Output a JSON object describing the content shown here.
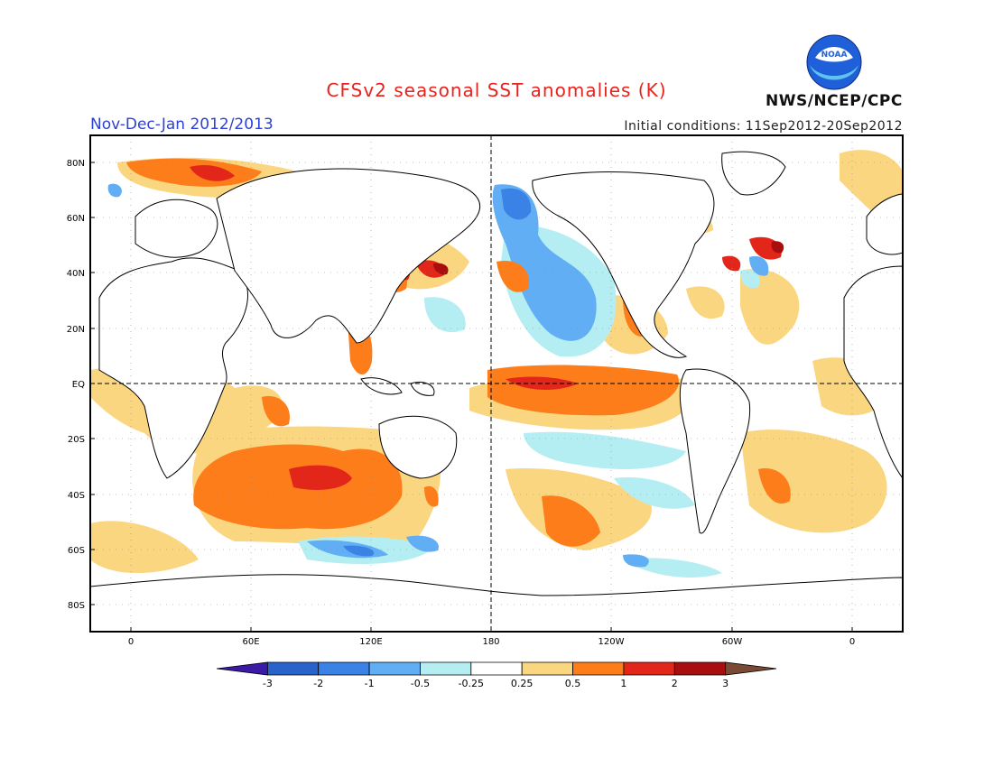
{
  "title": "CFSv2 seasonal SST anomalies (K)",
  "subtitle": "Nov-Dec-Jan 2012/2013",
  "initial_conditions": "Initial conditions: 11Sep2012-20Sep2012",
  "agency": "NWS/NCEP/CPC",
  "logo_text": "NOAA",
  "colors": {
    "title": "#e8231d",
    "subtitle": "#2f40d6"
  },
  "lat_labels": [
    "80N",
    "60N",
    "40N",
    "20N",
    "EQ",
    "20S",
    "40S",
    "60S",
    "80S"
  ],
  "lon_labels": [
    "0",
    "60E",
    "120E",
    "180",
    "120W",
    "60W",
    "0"
  ],
  "colorbar": {
    "ticks": [
      "-3",
      "-2",
      "-1",
      "-0.5",
      "-0.25",
      "0.25",
      "0.5",
      "1",
      "2",
      "3"
    ],
    "colors": [
      "#3a1aa6",
      "#2a62cc",
      "#3b82e6",
      "#62aef5",
      "#b4eef2",
      "#ffffff",
      "#fbd680",
      "#fc7d1a",
      "#e3261a",
      "#a80e0e",
      "#7b4a37"
    ]
  }
}
